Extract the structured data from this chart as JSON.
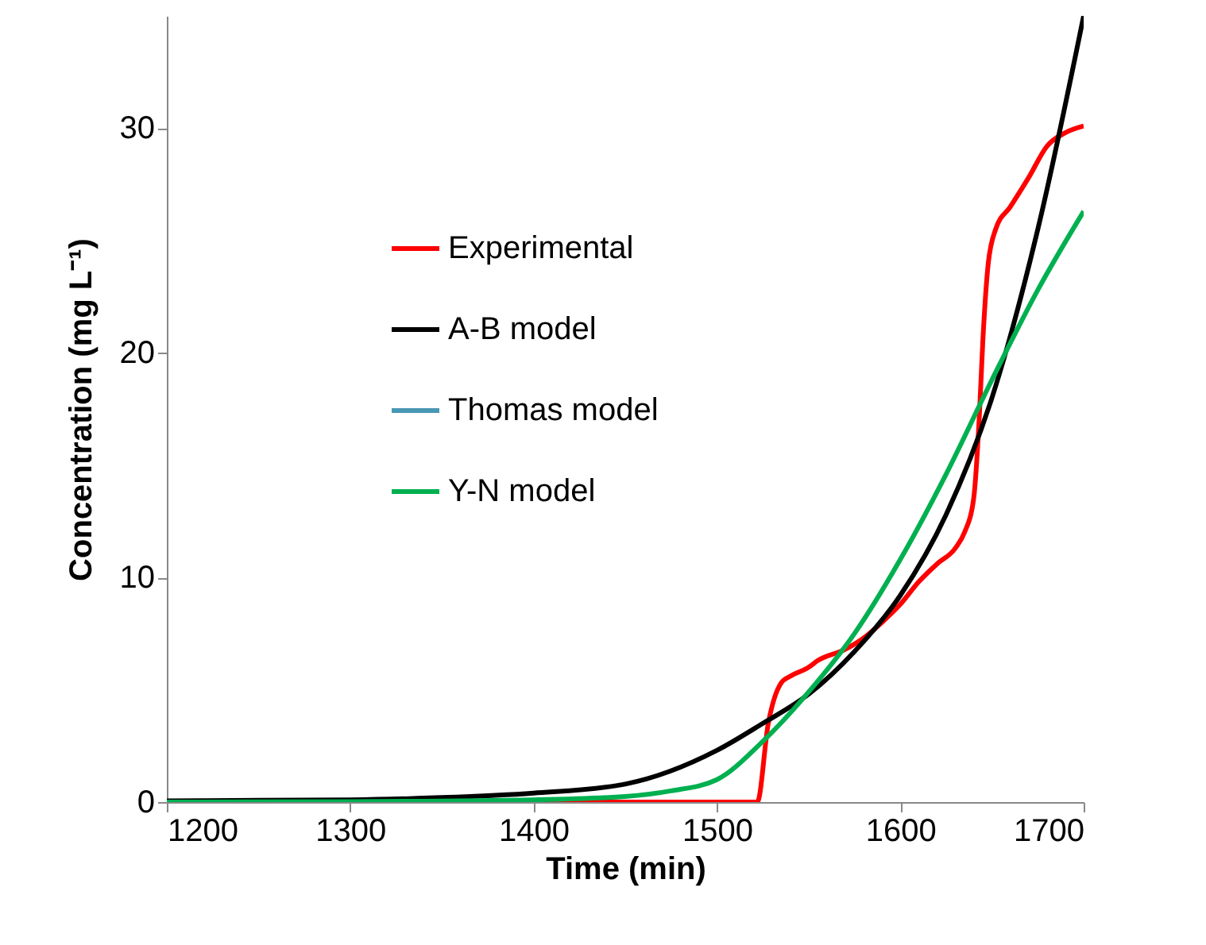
{
  "chart_data": {
    "type": "line",
    "xlabel": "Time (min)",
    "ylabel": "Concentration (mg L⁻¹)",
    "xlim": [
      1200,
      1700
    ],
    "xticks": [
      1200,
      1300,
      1400,
      1500,
      1600,
      1700
    ],
    "ylim": [
      0,
      35
    ],
    "yticks": [
      0,
      10,
      20,
      30
    ],
    "grid": false,
    "legend": "top left",
    "line_style": "solid",
    "marker": "none",
    "series": [
      {
        "name": "Experimental",
        "color": "#ff0000",
        "x": [
          1200,
          1300,
          1400,
          1500,
          1522,
          1528,
          1535,
          1540,
          1550,
          1555,
          1570,
          1580,
          1590,
          1600,
          1610,
          1620,
          1630,
          1635,
          1640,
          1643,
          1645,
          1648,
          1652,
          1660,
          1670,
          1680,
          1690,
          1700
        ],
        "values": [
          0,
          0,
          0,
          0,
          0,
          3.5,
          5.3,
          5.6,
          6.0,
          6.3,
          6.8,
          7.3,
          8.0,
          8.8,
          9.8,
          10.6,
          11.3,
          12.0,
          13.5,
          17.0,
          20.5,
          24.0,
          25.5,
          26.5,
          27.8,
          29.2,
          29.8,
          30.1
        ]
      },
      {
        "name": "A-B model",
        "color": "#000000",
        "x": [
          1200,
          1250,
          1300,
          1350,
          1400,
          1450,
          1500,
          1525,
          1550,
          1575,
          1600,
          1625,
          1650,
          1675,
          1700
        ],
        "values": [
          0.05,
          0.08,
          0.1,
          0.2,
          0.4,
          0.8,
          2.3,
          3.5,
          4.8,
          6.7,
          9.2,
          12.8,
          18.0,
          25.5,
          35.0
        ]
      },
      {
        "name": "Thomas model",
        "color": "#4a97b5"
      },
      {
        "name": "Y-N model",
        "color": "#00b050",
        "x": [
          1200,
          1300,
          1400,
          1450,
          1475,
          1500,
          1525,
          1550,
          1575,
          1600,
          1625,
          1650,
          1675,
          1700
        ],
        "values": [
          0,
          0.02,
          0.1,
          0.25,
          0.5,
          1.0,
          2.7,
          4.9,
          7.5,
          10.8,
          14.6,
          18.8,
          22.8,
          26.3
        ]
      }
    ]
  }
}
